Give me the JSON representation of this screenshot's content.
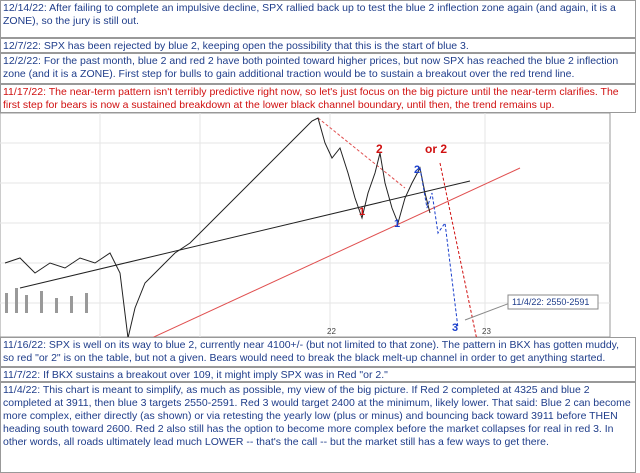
{
  "notes": [
    {
      "text": "12/14/22:  After failing to complete an impulsive decline, SPX rallied back up to test the blue 2 inflection zone again (and again, it is a ZONE), so the jury is still out."
    },
    {
      "text": "12/7/22:  SPX has been rejected by blue 2, keeping open the possibility that this is the start of blue 3."
    },
    {
      "text": "12/2/22:  For the past month, blue 2 and red 2 have both pointed toward higher prices, but now SPX has reached the blue 2 inflection zone (and it is a ZONE).  First step for bulls to gain additional traction would be to sustain a breakout over the red trend line."
    },
    {
      "text": "11/17/22:  The near-term pattern isn't terribly predictive right now, so let's just focus on the big picture until the near-term clarifies.  The first step for bears is now a sustained breakdown at the lower black channel boundary, until then, the trend remains up."
    }
  ],
  "chart": {
    "labels": [
      "2",
      "or 2",
      "1",
      "1",
      "2",
      "3",
      "3"
    ],
    "target": "11/4/22: 2550-2591",
    "years": [
      "22",
      "23"
    ]
  },
  "footer_notes": [
    {
      "text": "11/16/22:  SPX is well on its way to blue 2, currently near 4100+/- (but not limited to that zone).  The pattern in BKX has gotten muddy, so red \"or 2\" is on the table, but not a given.  Bears would need to break the black melt-up channel in order to get anything started."
    },
    {
      "text": "11/7/22:  If BKX sustains a breakout over 109, it might imply SPX was in Red \"or 2.\""
    },
    {
      "text": "11/4/22:  This chart is meant to simplify, as much as possible, my view of the big picture.  If Red 2 completed at 4325 and blue 2 completed at 3911, then blue 3 targets 2550-2591.  Red 3 would target 2400 at the minimum, likely lower.  That said:  Blue 2 can become more complex, either directly (as shown) or via retesting the yearly low (plus or minus) and bouncing back toward 3911 before THEN heading south toward 2600.  Red 2 also still has the option to become more complex before the market collapses for real in red 3.  In other words, all roads ultimately lead much LOWER -- that's the call -- but the market still has a few ways to get there."
    }
  ]
}
